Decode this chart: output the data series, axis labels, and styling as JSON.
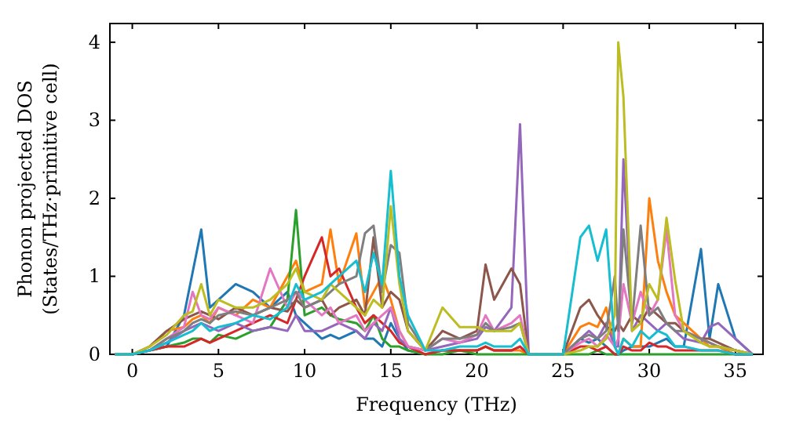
{
  "chart_data": {
    "type": "line",
    "xlabel": "Frequency (THz)",
    "ylabel": "Phonon projected DOS\n(States/THz·primitive cell)",
    "xlim": [
      -1.3,
      36.6
    ],
    "ylim": [
      0,
      4.24
    ],
    "xticks": [
      0,
      5,
      10,
      15,
      20,
      25,
      30,
      35
    ],
    "yticks": [
      0,
      1,
      2,
      3,
      4
    ],
    "grid": false,
    "x": [
      -1,
      0,
      1,
      2,
      3,
      3.5,
      4,
      4.5,
      5,
      6,
      7,
      8,
      9,
      9.5,
      10,
      11,
      11.5,
      12,
      13,
      13.5,
      14,
      14.5,
      15,
      15.5,
      16,
      17,
      18,
      19,
      20,
      20.5,
      21,
      22,
      22.5,
      23,
      24,
      25,
      26,
      26.5,
      27,
      27.5,
      28,
      28.2,
      28.5,
      29,
      29.5,
      30,
      30.5,
      31,
      31.5,
      32,
      33,
      33.5,
      34,
      35,
      36
    ],
    "series": [
      {
        "color": "#1f77b4",
        "values": [
          0,
          0,
          0.05,
          0.1,
          0.5,
          1.05,
          1.6,
          0.6,
          0.7,
          0.9,
          0.8,
          0.6,
          0.8,
          0.5,
          0.4,
          0.2,
          0.25,
          0.2,
          0.3,
          0.2,
          0.2,
          0.1,
          0.4,
          0.2,
          0.05,
          0,
          0.05,
          0.05,
          0.05,
          0.1,
          0.05,
          0.05,
          0.1,
          0,
          0,
          0,
          0.2,
          0.15,
          0.2,
          0.1,
          0,
          0,
          0.05,
          0.1,
          0.1,
          0.1,
          0.15,
          0.2,
          0.1,
          0.1,
          1.35,
          0.2,
          0.9,
          0.2,
          0
        ]
      },
      {
        "color": "#ff7f0e",
        "values": [
          null,
          null,
          0.1,
          0.3,
          0.35,
          0.45,
          0.5,
          0.4,
          0.6,
          0.5,
          0.7,
          0.6,
          1.0,
          1.2,
          0.8,
          0.9,
          1.6,
          0.9,
          1.55,
          0.6,
          0.8,
          1.0,
          0.7,
          0.3,
          0.1,
          0,
          0.05,
          0.05,
          0.05,
          0.1,
          0.05,
          0.05,
          0.05,
          0,
          0,
          0,
          0.35,
          0.4,
          0.35,
          0.6,
          0.1,
          0,
          0.2,
          0.1,
          0.1,
          2.0,
          1.2,
          0.8,
          0.5,
          0.4,
          0.2,
          0.1,
          0.1,
          0,
          0
        ]
      },
      {
        "color": "#2ca02c",
        "values": [
          0,
          0,
          0.05,
          0.1,
          0.15,
          0.2,
          0.2,
          0.15,
          0.25,
          0.2,
          0.3,
          0.35,
          0.7,
          1.85,
          0.5,
          0.6,
          0.5,
          0.45,
          0.4,
          0.3,
          0.5,
          0.2,
          0.1,
          0.1,
          0.05,
          0,
          0,
          0.05,
          0,
          0,
          0,
          0,
          0,
          0,
          0,
          0,
          0,
          0,
          0.05,
          0,
          0,
          0,
          0,
          0,
          0,
          0,
          0,
          0,
          0,
          0,
          0,
          0,
          0,
          0,
          0
        ]
      },
      {
        "color": "#d62728",
        "values": [
          0,
          0,
          0.05,
          0.1,
          0.1,
          0.15,
          0.2,
          0.15,
          0.2,
          0.3,
          0.4,
          0.5,
          0.4,
          0.7,
          1.0,
          1.5,
          1.0,
          1.1,
          0.6,
          0.4,
          0.5,
          0.4,
          0.3,
          0.15,
          0.1,
          0,
          0.05,
          0.05,
          0.05,
          0.1,
          0.05,
          0.05,
          0.1,
          0,
          0,
          0,
          0.1,
          0.1,
          0.05,
          0.1,
          0,
          0,
          0.1,
          0.05,
          0.05,
          0.15,
          0.1,
          0.1,
          0.05,
          0.05,
          0.05,
          0.05,
          0.05,
          0,
          0
        ]
      },
      {
        "color": "#9467bd",
        "values": [
          0,
          0,
          0.05,
          0.15,
          0.3,
          0.35,
          0.4,
          0.35,
          0.3,
          0.4,
          0.3,
          0.35,
          0.3,
          0.5,
          0.3,
          0.3,
          0.35,
          0.4,
          0.3,
          0.2,
          0.4,
          0.3,
          0.6,
          0.2,
          0.1,
          0.05,
          0.1,
          0.15,
          0.2,
          0.35,
          0.3,
          0.6,
          2.95,
          0,
          0,
          0,
          0.2,
          0.3,
          0.2,
          0.4,
          0.1,
          0.1,
          2.5,
          0.3,
          0.5,
          0.4,
          0.3,
          0.4,
          0.3,
          0.2,
          0.15,
          0.35,
          0.4,
          0.2,
          0
        ]
      },
      {
        "color": "#8c564b",
        "values": [
          0,
          0,
          0.1,
          0.3,
          0.45,
          0.5,
          0.55,
          0.5,
          0.45,
          0.6,
          0.5,
          0.6,
          0.55,
          0.7,
          0.6,
          0.7,
          0.5,
          0.6,
          0.7,
          0.5,
          1.5,
          0.6,
          0.8,
          0.7,
          0.3,
          0.05,
          0.3,
          0.2,
          0.3,
          1.15,
          0.7,
          1.1,
          0.9,
          0,
          0,
          0,
          0.6,
          0.7,
          0.5,
          0.35,
          0.3,
          0.4,
          0.3,
          0.5,
          0.4,
          0.6,
          0.5,
          0.4,
          0.4,
          0.3,
          0.2,
          0.2,
          0.15,
          0.05,
          0
        ]
      },
      {
        "color": "#e377c2",
        "values": [
          0,
          0,
          0.05,
          0.2,
          0.35,
          0.8,
          0.5,
          0.45,
          0.6,
          0.5,
          0.4,
          1.1,
          0.6,
          0.8,
          0.7,
          0.5,
          0.6,
          0.4,
          0.5,
          0.3,
          0.4,
          0.5,
          0.6,
          0.3,
          0.1,
          0.05,
          0.2,
          0.15,
          0.25,
          0.5,
          0.3,
          0.4,
          0.5,
          0,
          0,
          0,
          0.15,
          0.2,
          0.1,
          0.25,
          0.1,
          0.2,
          0.9,
          0.4,
          0.8,
          0.5,
          0.7,
          1.6,
          0.5,
          0.3,
          0.2,
          0.15,
          0.1,
          0.05,
          0
        ]
      },
      {
        "color": "#7f7f7f",
        "values": [
          0,
          0,
          0.05,
          0.2,
          0.3,
          0.4,
          0.45,
          0.4,
          0.5,
          0.55,
          0.5,
          0.6,
          0.7,
          0.8,
          0.6,
          0.7,
          0.8,
          0.9,
          1.0,
          1.55,
          1.65,
          0.8,
          1.4,
          1.3,
          0.4,
          0.05,
          0.2,
          0.2,
          0.25,
          0.4,
          0.3,
          0.35,
          0.4,
          0,
          0,
          0,
          0.2,
          0.25,
          0.2,
          0.3,
          1.0,
          0.3,
          1.6,
          0.4,
          1.65,
          0.5,
          0.6,
          0.4,
          0.3,
          0.3,
          0.2,
          0.15,
          0.1,
          0.05,
          0
        ]
      },
      {
        "color": "#bcbd22",
        "values": [
          0,
          0,
          0.1,
          0.25,
          0.5,
          0.55,
          0.9,
          0.5,
          0.7,
          0.6,
          0.6,
          0.7,
          0.9,
          1.1,
          0.8,
          0.7,
          0.9,
          0.8,
          0.6,
          0.5,
          0.7,
          0.6,
          1.9,
          0.9,
          0.3,
          0.05,
          0.6,
          0.35,
          0.35,
          0.3,
          0.3,
          0.3,
          0.4,
          0,
          0,
          0,
          0.05,
          0.1,
          0.1,
          0.2,
          0.5,
          4.0,
          3.3,
          0.3,
          0.4,
          0.9,
          0.7,
          1.75,
          0.95,
          0.3,
          0.15,
          0.1,
          0.1,
          0.05,
          0
        ]
      },
      {
        "color": "#17becf",
        "values": [
          0,
          0,
          0.05,
          0.15,
          0.25,
          0.3,
          0.4,
          0.3,
          0.35,
          0.4,
          0.5,
          0.45,
          0.6,
          0.9,
          0.7,
          0.8,
          0.9,
          1.0,
          1.2,
          0.8,
          1.3,
          0.9,
          2.35,
          1.0,
          0.5,
          0.05,
          0.05,
          0.1,
          0.1,
          0.15,
          0.1,
          0.1,
          0.2,
          0,
          0,
          0,
          1.5,
          1.65,
          1.2,
          1.6,
          0.1,
          0,
          0.2,
          0.1,
          0.3,
          0.2,
          0.3,
          0.25,
          0.1,
          0.1,
          0.05,
          0.05,
          0.05,
          0,
          0
        ]
      }
    ]
  }
}
